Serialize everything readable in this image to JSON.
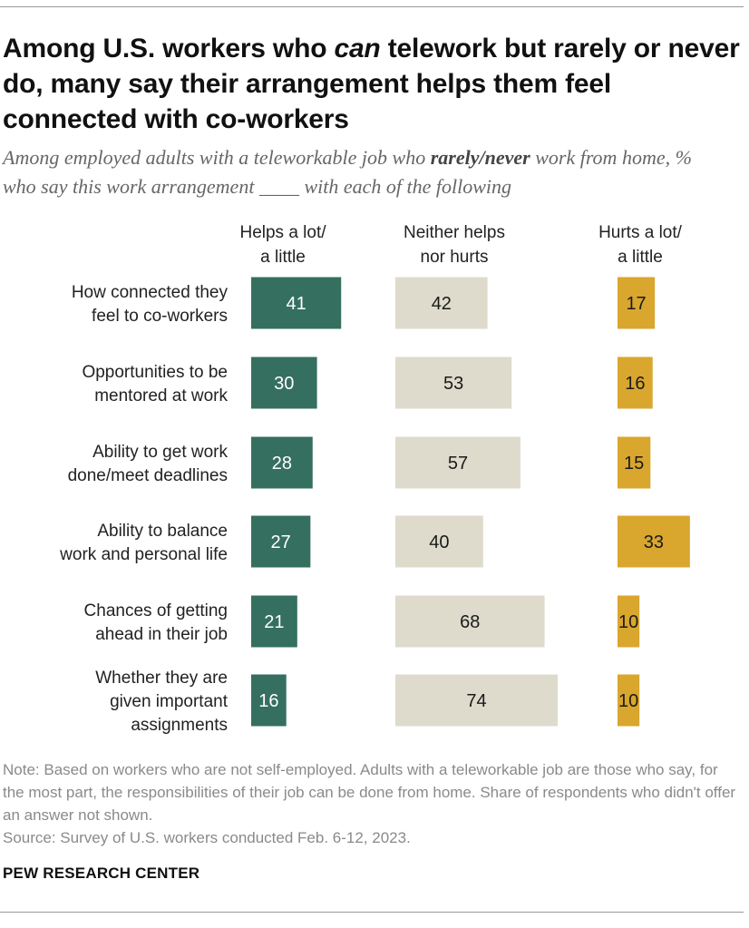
{
  "title_parts": {
    "before": "Among U.S. workers who ",
    "emph": "can",
    "after": " telework but rarely or never do, many say their arrangement helps them feel connected with co-workers"
  },
  "subtitle_parts": {
    "before": "Among employed adults with a teleworkable job who ",
    "bold": "rarely/never",
    "after": " work from home, % who say this work arrangement ____ with each of the following"
  },
  "chart_data": {
    "type": "bar",
    "orientation": "horizontal",
    "layout": "side-by-side panels",
    "categories": [
      [
        "How connected they",
        "feel to co-workers"
      ],
      [
        "Opportunities to be",
        "mentored at work"
      ],
      [
        "Ability to get work",
        "done/meet deadlines"
      ],
      [
        "Ability to balance",
        "work and personal life"
      ],
      [
        "Chances of getting",
        "ahead in their job"
      ],
      [
        "Whether they are",
        "given important",
        "assignments"
      ]
    ],
    "series": [
      {
        "name": [
          "Helps a lot/",
          "a little"
        ],
        "color": "#356f5f",
        "label_color": "#ffffff",
        "values": [
          41,
          30,
          28,
          27,
          21,
          16
        ]
      },
      {
        "name": [
          "Neither helps",
          "nor hurts"
        ],
        "color": "#dedbcc",
        "label_color": "#1a1a1a",
        "values": [
          42,
          53,
          57,
          40,
          68,
          74
        ]
      },
      {
        "name": [
          "Hurts a lot/",
          "a little"
        ],
        "color": "#d9a62e",
        "label_color": "#1a1a1a",
        "values": [
          17,
          16,
          15,
          33,
          10,
          10
        ]
      }
    ],
    "data_labels": true,
    "gridlines": false
  },
  "note": "Note: Based on workers who are not self-employed. Adults with a teleworkable job are those who say, for the most part, the responsibilities of their job can be done from home. Share of respondents who didn't offer an answer not shown.",
  "source": "Source: Survey of U.S. workers conducted Feb. 6-12, 2023.",
  "brand": "PEW RESEARCH CENTER"
}
